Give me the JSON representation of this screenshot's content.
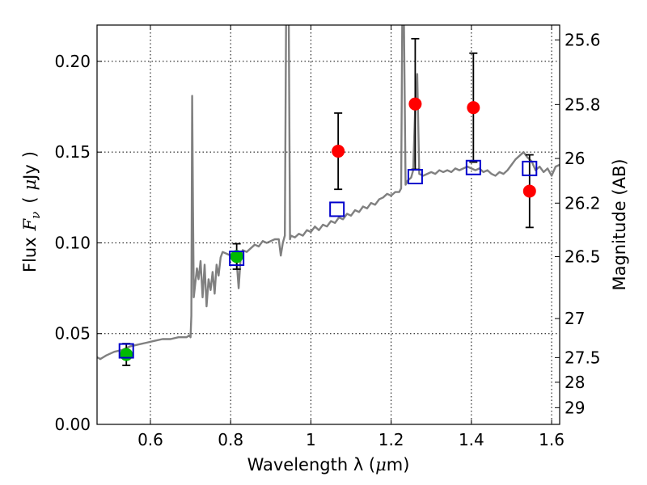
{
  "chart_data": {
    "type": "scatter",
    "xlabel_text": "Wavelength  λ (",
    "xlabel_mu": "μ",
    "xlabel_unit": "m)",
    "ylabel_flux": "Flux",
    "ylabel_f": "F",
    "ylabel_nu": "ν",
    "ylabel_paren_open": "(",
    "ylabel_mu": "μ",
    "ylabel_unit": "Jy",
    "ylabel_paren_close": ")",
    "ylabel_right": "Magnitude (AB)",
    "xlim": [
      0.467,
      1.62
    ],
    "ylim": [
      0.0,
      0.22
    ],
    "grid": true,
    "x_ticks": [
      0.6,
      0.8,
      1.0,
      1.2,
      1.4,
      1.6
    ],
    "x_tick_labels": [
      "0.6",
      "0.8",
      "1",
      "1.2",
      "1.4",
      "1.6"
    ],
    "y_ticks": [
      0.0,
      0.05,
      0.1,
      0.15,
      0.2
    ],
    "y_tick_labels": [
      "0.00",
      "0.05",
      "0.10",
      "0.15",
      "0.20"
    ],
    "right_ticks": [
      {
        "label": "25.6",
        "flux": 0.2118
      },
      {
        "label": "25.8",
        "flux": 0.1762
      },
      {
        "label": "26",
        "flux": 0.1465
      },
      {
        "label": "26.2",
        "flux": 0.1219
      },
      {
        "label": "26.5",
        "flux": 0.0924
      },
      {
        "label": "27",
        "flux": 0.0583
      },
      {
        "label": "27.5",
        "flux": 0.0368
      },
      {
        "label": "28",
        "flux": 0.0232
      },
      {
        "label": "29",
        "flux": 0.0092
      }
    ],
    "model_spectrum": {
      "name": "model SED",
      "color": "#808080",
      "points": [
        [
          0.467,
          0.037
        ],
        [
          0.475,
          0.036
        ],
        [
          0.49,
          0.038
        ],
        [
          0.51,
          0.04
        ],
        [
          0.53,
          0.041
        ],
        [
          0.55,
          0.043
        ],
        [
          0.57,
          0.044
        ],
        [
          0.59,
          0.045
        ],
        [
          0.61,
          0.046
        ],
        [
          0.63,
          0.047
        ],
        [
          0.65,
          0.047
        ],
        [
          0.67,
          0.048
        ],
        [
          0.69,
          0.048
        ],
        [
          0.697,
          0.049
        ],
        [
          0.7,
          0.048
        ],
        [
          0.702,
          0.06
        ],
        [
          0.704,
          0.181
        ],
        [
          0.706,
          0.12
        ],
        [
          0.708,
          0.07
        ],
        [
          0.712,
          0.078
        ],
        [
          0.716,
          0.086
        ],
        [
          0.72,
          0.08
        ],
        [
          0.725,
          0.09
        ],
        [
          0.73,
          0.07
        ],
        [
          0.735,
          0.088
        ],
        [
          0.74,
          0.065
        ],
        [
          0.745,
          0.08
        ],
        [
          0.75,
          0.074
        ],
        [
          0.755,
          0.084
        ],
        [
          0.76,
          0.072
        ],
        [
          0.765,
          0.088
        ],
        [
          0.77,
          0.082
        ],
        [
          0.775,
          0.092
        ],
        [
          0.78,
          0.095
        ],
        [
          0.79,
          0.094
        ],
        [
          0.8,
          0.093
        ],
        [
          0.81,
          0.094
        ],
        [
          0.815,
          0.09
        ],
        [
          0.82,
          0.075
        ],
        [
          0.825,
          0.092
        ],
        [
          0.83,
          0.096
        ],
        [
          0.84,
          0.095
        ],
        [
          0.85,
          0.097
        ],
        [
          0.86,
          0.099
        ],
        [
          0.87,
          0.098
        ],
        [
          0.88,
          0.101
        ],
        [
          0.89,
          0.1
        ],
        [
          0.9,
          0.101
        ],
        [
          0.91,
          0.102
        ],
        [
          0.92,
          0.102
        ],
        [
          0.925,
          0.093
        ],
        [
          0.93,
          0.1
        ],
        [
          0.935,
          0.104
        ],
        [
          0.938,
          0.22
        ],
        [
          0.942,
          0.23
        ],
        [
          0.945,
          0.22
        ],
        [
          0.948,
          0.102
        ],
        [
          0.95,
          0.104
        ],
        [
          0.96,
          0.103
        ],
        [
          0.97,
          0.105
        ],
        [
          0.98,
          0.104
        ],
        [
          0.99,
          0.107
        ],
        [
          1.0,
          0.106
        ],
        [
          1.01,
          0.109
        ],
        [
          1.02,
          0.107
        ],
        [
          1.03,
          0.11
        ],
        [
          1.04,
          0.109
        ],
        [
          1.05,
          0.112
        ],
        [
          1.06,
          0.111
        ],
        [
          1.07,
          0.114
        ],
        [
          1.08,
          0.113
        ],
        [
          1.09,
          0.116
        ],
        [
          1.1,
          0.115
        ],
        [
          1.11,
          0.118
        ],
        [
          1.12,
          0.117
        ],
        [
          1.13,
          0.12
        ],
        [
          1.14,
          0.119
        ],
        [
          1.15,
          0.122
        ],
        [
          1.16,
          0.121
        ],
        [
          1.17,
          0.124
        ],
        [
          1.18,
          0.125
        ],
        [
          1.19,
          0.127
        ],
        [
          1.2,
          0.126
        ],
        [
          1.21,
          0.128
        ],
        [
          1.22,
          0.128
        ],
        [
          1.225,
          0.13
        ],
        [
          1.228,
          0.23
        ],
        [
          1.232,
          0.22
        ],
        [
          1.236,
          0.132
        ],
        [
          1.24,
          0.134
        ],
        [
          1.25,
          0.136
        ],
        [
          1.255,
          0.14
        ],
        [
          1.26,
          0.175
        ],
        [
          1.265,
          0.193
        ],
        [
          1.27,
          0.138
        ],
        [
          1.28,
          0.137
        ],
        [
          1.29,
          0.138
        ],
        [
          1.3,
          0.139
        ],
        [
          1.31,
          0.138
        ],
        [
          1.32,
          0.14
        ],
        [
          1.33,
          0.139
        ],
        [
          1.34,
          0.14
        ],
        [
          1.35,
          0.139
        ],
        [
          1.36,
          0.141
        ],
        [
          1.37,
          0.14
        ],
        [
          1.38,
          0.141
        ],
        [
          1.39,
          0.142
        ],
        [
          1.4,
          0.141
        ],
        [
          1.41,
          0.14
        ],
        [
          1.42,
          0.141
        ],
        [
          1.43,
          0.139
        ],
        [
          1.44,
          0.14
        ],
        [
          1.45,
          0.138
        ],
        [
          1.46,
          0.137
        ],
        [
          1.47,
          0.139
        ],
        [
          1.48,
          0.138
        ],
        [
          1.49,
          0.14
        ],
        [
          1.5,
          0.143
        ],
        [
          1.51,
          0.146
        ],
        [
          1.52,
          0.148
        ],
        [
          1.53,
          0.15
        ],
        [
          1.54,
          0.147
        ],
        [
          1.55,
          0.145
        ],
        [
          1.56,
          0.14
        ],
        [
          1.57,
          0.142
        ],
        [
          1.58,
          0.139
        ],
        [
          1.59,
          0.141
        ],
        [
          1.6,
          0.137
        ],
        [
          1.61,
          0.142
        ],
        [
          1.62,
          0.143
        ]
      ]
    },
    "model_photometry": {
      "name": "model photometry",
      "color": "#0000cc",
      "points": [
        {
          "x": 0.54,
          "y": 0.0405
        },
        {
          "x": 0.815,
          "y": 0.0915
        },
        {
          "x": 1.065,
          "y": 0.1185
        },
        {
          "x": 1.26,
          "y": 0.1365
        },
        {
          "x": 1.405,
          "y": 0.1415
        },
        {
          "x": 1.545,
          "y": 0.141
        }
      ]
    },
    "observed_optical": {
      "name": "observed photometry (optical)",
      "color": "#00bb00",
      "points": [
        {
          "x": 0.54,
          "y": 0.0385,
          "err": 0.006
        },
        {
          "x": 0.815,
          "y": 0.0925,
          "err": 0.007
        }
      ]
    },
    "observed_nir": {
      "name": "observed photometry (near-IR)",
      "color": "#ff0000",
      "points": [
        {
          "x": 1.068,
          "y": 0.1505,
          "err": 0.021
        },
        {
          "x": 1.26,
          "y": 0.1765,
          "err": 0.036
        },
        {
          "x": 1.405,
          "y": 0.1745,
          "err": 0.03
        },
        {
          "x": 1.545,
          "y": 0.1285,
          "err": 0.02
        }
      ]
    }
  }
}
